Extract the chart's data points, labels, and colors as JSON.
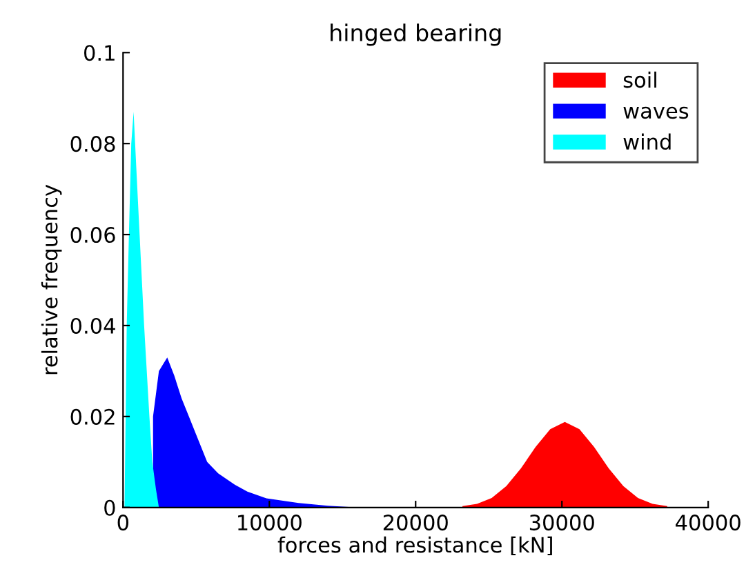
{
  "chart_data": {
    "type": "area",
    "title": "hinged bearing",
    "xlabel": "forces and resistance [kN]",
    "ylabel": "relative frequency",
    "xlim": [
      0,
      40000
    ],
    "ylim": [
      0,
      0.1
    ],
    "xticks": [
      0,
      10000,
      20000,
      30000,
      40000
    ],
    "yticks": [
      0,
      0.02,
      0.04,
      0.06,
      0.08,
      0.1
    ],
    "legend": "top right",
    "grid": false,
    "series": [
      {
        "name": "soil",
        "color": "#ff0000",
        "x": [
          23200,
          24200,
          25200,
          26200,
          27200,
          28200,
          29200,
          30200,
          31200,
          32200,
          33200,
          34200,
          35200,
          36200,
          37200
        ],
        "values": [
          0.0003,
          0.0008,
          0.0021,
          0.0047,
          0.0086,
          0.0133,
          0.0172,
          0.0188,
          0.0172,
          0.0133,
          0.0086,
          0.0047,
          0.0021,
          0.0008,
          0.0003
        ]
      },
      {
        "name": "waves",
        "color": "#0000ff",
        "x": [
          2050,
          2450,
          3020,
          3500,
          4000,
          4500,
          5000,
          5750,
          6500,
          7640,
          8500,
          9800,
          12000,
          14000,
          16000
        ],
        "values": [
          0.02,
          0.03,
          0.033,
          0.029,
          0.024,
          0.02,
          0.016,
          0.01,
          0.0075,
          0.005,
          0.0035,
          0.002,
          0.001,
          0.0004,
          0
        ]
      },
      {
        "name": "wind",
        "color": "#00ffff",
        "x": [
          100,
          250,
          400,
          560,
          720,
          900,
          1130,
          1440,
          1800,
          2000,
          2250,
          2450
        ],
        "values": [
          0,
          0.04,
          0.06,
          0.08,
          0.087,
          0.075,
          0.06,
          0.04,
          0.02,
          0.01,
          0.004,
          0
        ]
      }
    ]
  }
}
